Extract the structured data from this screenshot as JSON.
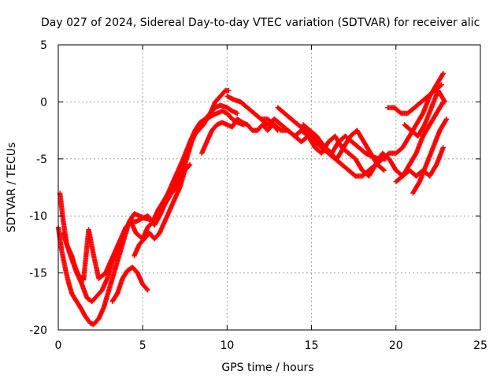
{
  "chart_data": {
    "type": "scatter",
    "title": "Day 027 of 2024, Sidereal Day-to-day VTEC variation (SDTVAR) for receiver alic",
    "xlabel": "GPS time / hours",
    "ylabel": "SDTVAR / TECUs",
    "xlim": [
      0,
      25
    ],
    "ylim": [
      -20,
      5
    ],
    "xticks": [
      0,
      5,
      10,
      15,
      20,
      25
    ],
    "yticks": [
      5,
      0,
      -5,
      -10,
      -15,
      -20
    ],
    "xtick_labels": [
      "0",
      "5",
      "10",
      "15",
      "20",
      "25"
    ],
    "ytick_labels": [
      "5",
      "0",
      "-5",
      "-10",
      "-15",
      "-20"
    ],
    "grid": true,
    "legend": "none",
    "marker": "plus",
    "color": "#ff0000",
    "series": [
      {
        "x": [
          0.0,
          0.2,
          0.4,
          0.6,
          0.8,
          1.0,
          1.3,
          1.6,
          1.9,
          2.1,
          2.4,
          2.7,
          3.0,
          3.3,
          3.6,
          3.9,
          4.2,
          4.5,
          4.8,
          5.1,
          5.4,
          5.7,
          6.0,
          6.3,
          6.6,
          7.0,
          7.3,
          7.6,
          8.0,
          8.3,
          8.6,
          9.0,
          9.3,
          9.6,
          9.9,
          10.1
        ],
        "y": [
          -11.0,
          -13.0,
          -14.5,
          -15.8,
          -16.8,
          -17.3,
          -18.0,
          -18.8,
          -19.4,
          -19.5,
          -19.0,
          -18.0,
          -16.5,
          -15.0,
          -13.5,
          -12.0,
          -10.5,
          -9.8,
          -10.0,
          -10.2,
          -10.3,
          -10.8,
          -10.0,
          -9.0,
          -8.0,
          -7.0,
          -5.8,
          -4.5,
          -3.0,
          -2.5,
          -2.0,
          -1.0,
          0.0,
          0.5,
          1.0,
          1.0
        ]
      },
      {
        "x": [
          0.1,
          0.3,
          0.5,
          0.8,
          1.1,
          1.4,
          1.7,
          2.0,
          2.3,
          2.6,
          2.9,
          3.2,
          3.5,
          3.8,
          4.0,
          4.3,
          4.6,
          5.0,
          5.3,
          5.6,
          5.9,
          6.2,
          6.5,
          6.8,
          7.1,
          7.4,
          7.8,
          8.1,
          8.4,
          8.7,
          9.0,
          9.3,
          9.6,
          10.0,
          10.3,
          10.6
        ],
        "y": [
          -8.0,
          -10.5,
          -12.5,
          -13.8,
          -15.0,
          -16.0,
          -17.2,
          -17.5,
          -17.0,
          -16.5,
          -15.5,
          -14.0,
          -13.0,
          -12.0,
          -11.0,
          -10.5,
          -10.5,
          -10.2,
          -10.0,
          -10.5,
          -9.5,
          -8.8,
          -8.0,
          -7.0,
          -6.0,
          -5.0,
          -3.5,
          -2.5,
          -1.8,
          -1.5,
          -1.0,
          -0.5,
          -0.3,
          -0.5,
          -0.8,
          -1.0
        ]
      },
      {
        "x": [
          0.3,
          0.5,
          0.8,
          1.0,
          1.2,
          1.5,
          1.8,
          2.1,
          2.4,
          2.8,
          3.1,
          3.4,
          3.7,
          4.0,
          4.3,
          4.6,
          5.0,
          5.3,
          5.6,
          6.0,
          6.3,
          6.7,
          7.0,
          7.3,
          7.6,
          7.9,
          8.2,
          8.5,
          8.8,
          9.1,
          9.4,
          9.7,
          10.0,
          10.3,
          10.6,
          11.0
        ],
        "y": [
          -11.5,
          -12.5,
          -13.5,
          -14.5,
          -15.2,
          -15.6,
          -11.2,
          -13.5,
          -15.5,
          -15.0,
          -14.0,
          -13.0,
          -12.0,
          -11.0,
          -10.5,
          -11.5,
          -12.0,
          -11.0,
          -10.5,
          -10.0,
          -9.0,
          -8.0,
          -7.5,
          -6.5,
          -5.0,
          -3.5,
          -2.5,
          -2.0,
          -1.5,
          -1.2,
          -1.0,
          -0.8,
          -1.0,
          -1.5,
          -1.8,
          -2.0
        ]
      },
      {
        "x": [
          3.2,
          3.5,
          3.8,
          4.1,
          4.4,
          4.7,
          5.0,
          5.3
        ],
        "y": [
          -17.5,
          -16.8,
          -15.5,
          -14.8,
          -14.5,
          -15.0,
          -16.0,
          -16.5
        ]
      },
      {
        "x": [
          4.5,
          4.8,
          5.1,
          5.4,
          5.7,
          6.0,
          6.3,
          6.6,
          6.9,
          7.2,
          7.5,
          7.8
        ],
        "y": [
          -13.5,
          -12.5,
          -12.0,
          -11.5,
          -12.0,
          -11.5,
          -10.5,
          -9.5,
          -8.5,
          -7.5,
          -6.0,
          -5.5
        ]
      },
      {
        "x": [
          8.5,
          8.8,
          9.1,
          9.4,
          9.7,
          10.0,
          10.3,
          10.6,
          10.9,
          11.2,
          11.5,
          11.8,
          12.1,
          12.4,
          12.7,
          13.0
        ],
        "y": [
          -4.5,
          -3.5,
          -2.5,
          -2.0,
          -1.8,
          -2.0,
          -2.2,
          -1.5,
          -1.8,
          -2.0,
          -2.5,
          -2.5,
          -2.0,
          -2.5,
          -2.0,
          -2.5
        ]
      },
      {
        "x": [
          10.0,
          10.4,
          10.8,
          11.2,
          11.6,
          12.0,
          12.4,
          12.8,
          13.2,
          13.6,
          14.0,
          14.4,
          14.8,
          15.2,
          15.6,
          16.0,
          16.4,
          16.8,
          17.2,
          17.6,
          18.0,
          18.4,
          18.8,
          19.2,
          19.6,
          20.0,
          20.4,
          20.8,
          21.2,
          21.6,
          22.0,
          22.4,
          22.8
        ],
        "y": [
          0.5,
          0.2,
          0.0,
          -0.5,
          -1.0,
          -1.5,
          -1.5,
          -2.0,
          -2.5,
          -2.5,
          -3.0,
          -2.5,
          -3.0,
          -3.5,
          -4.0,
          -4.5,
          -5.0,
          -5.5,
          -6.0,
          -6.5,
          -6.5,
          -6.0,
          -5.5,
          -5.0,
          -4.5,
          -4.5,
          -4.0,
          -3.0,
          -2.0,
          -1.0,
          0.5,
          1.5,
          2.5
        ]
      },
      {
        "x": [
          12.0,
          12.4,
          12.8,
          13.2,
          13.6,
          14.0,
          14.4,
          14.8,
          15.2,
          15.6,
          16.0,
          16.4,
          16.8,
          17.2,
          17.6,
          18.0,
          18.4,
          18.8,
          19.2,
          19.6,
          20.0,
          20.4,
          20.8,
          21.2,
          21.6,
          22.0,
          22.4,
          22.8
        ],
        "y": [
          -1.5,
          -2.0,
          -1.5,
          -2.0,
          -2.5,
          -3.0,
          -3.5,
          -3.0,
          -4.0,
          -4.5,
          -3.5,
          -3.0,
          -4.0,
          -4.5,
          -5.0,
          -6.0,
          -6.5,
          -5.5,
          -4.5,
          -5.0,
          -6.0,
          -6.5,
          -5.5,
          -4.5,
          -3.0,
          -2.0,
          -1.0,
          0.0
        ]
      },
      {
        "x": [
          13.0,
          13.4,
          13.8,
          14.2,
          14.6,
          15.0,
          15.4,
          15.8,
          16.2,
          16.6,
          17.0,
          17.4,
          17.8,
          18.2,
          18.6,
          19.0,
          19.4
        ],
        "y": [
          -0.5,
          -1.0,
          -1.5,
          -2.0,
          -2.5,
          -3.0,
          -3.5,
          -4.0,
          -4.5,
          -3.5,
          -3.0,
          -3.5,
          -4.0,
          -4.5,
          -4.8,
          -5.0,
          -5.0
        ]
      },
      {
        "x": [
          14.5,
          14.9,
          15.3,
          15.7,
          16.1,
          16.5,
          16.9,
          17.3,
          17.7,
          18.1,
          18.5,
          18.9,
          19.3
        ],
        "y": [
          -2.0,
          -2.5,
          -3.0,
          -3.8,
          -4.5,
          -5.0,
          -4.0,
          -3.0,
          -2.5,
          -3.5,
          -4.5,
          -5.5,
          -6.0
        ]
      },
      {
        "x": [
          19.5,
          19.9,
          20.3,
          20.7,
          21.1,
          21.5,
          21.9,
          22.3,
          22.7
        ],
        "y": [
          -0.5,
          -0.5,
          -1.0,
          -1.0,
          -0.5,
          0.0,
          0.5,
          1.0,
          1.5
        ]
      },
      {
        "x": [
          20.0,
          20.4,
          20.8,
          21.2,
          21.6,
          22.0,
          22.4,
          22.8
        ],
        "y": [
          -7.0,
          -6.5,
          -6.0,
          -6.5,
          -6.0,
          -6.5,
          -5.5,
          -4.0
        ]
      },
      {
        "x": [
          20.5,
          20.9,
          21.3,
          21.7,
          22.1,
          22.5,
          22.9
        ],
        "y": [
          -2.0,
          -2.5,
          -3.0,
          -2.0,
          -0.5,
          1.0,
          0.0
        ]
      },
      {
        "x": [
          21.0,
          21.4,
          21.8,
          22.2,
          22.6,
          23.0
        ],
        "y": [
          -8.0,
          -7.0,
          -5.5,
          -4.0,
          -2.5,
          -1.5
        ]
      }
    ]
  }
}
